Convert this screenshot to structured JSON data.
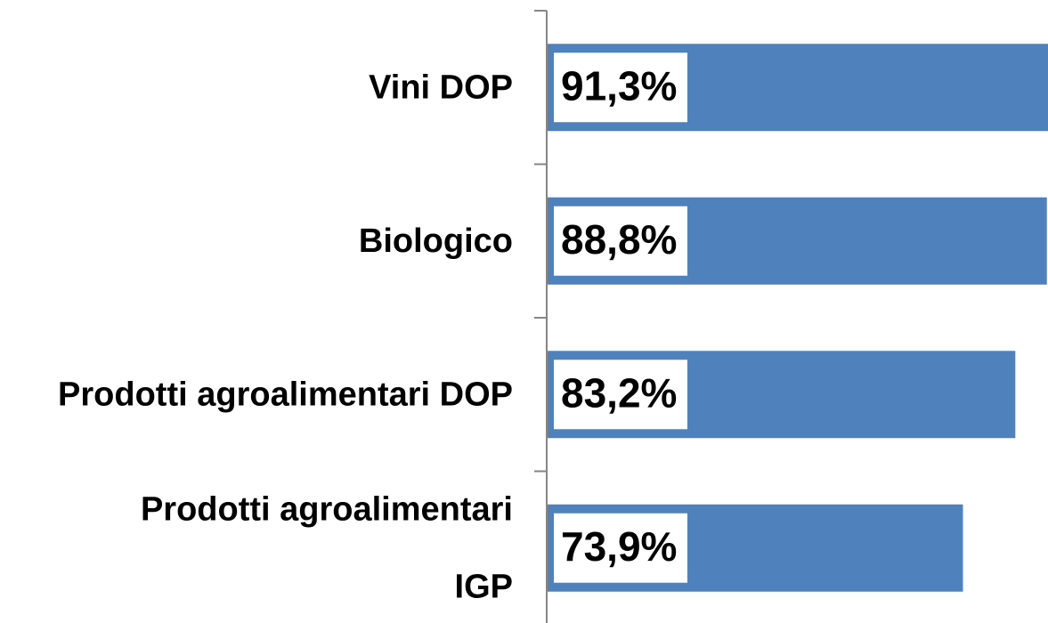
{
  "chart_data": {
    "type": "hbar",
    "categories": [
      "Vini DOP",
      "Biologico",
      "Prodotti agroalimentari DOP",
      [
        "Prodotti agroalimentari",
        "IGP"
      ]
    ],
    "values": [
      91.3,
      88.8,
      83.2,
      73.9
    ],
    "value_labels": [
      "91,3%",
      "88,8%",
      "83,2%",
      "73,9%"
    ],
    "color": "#4f81bd",
    "xlim": [
      0,
      89
    ]
  }
}
